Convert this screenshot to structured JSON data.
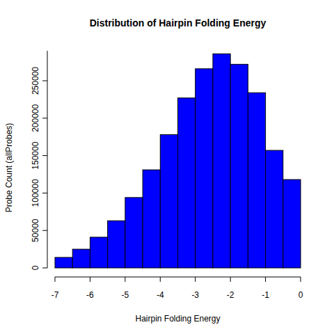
{
  "chart_data": {
    "type": "histogram",
    "title": "Distribution of Hairpin Folding Energy",
    "x_label": "Hairpin Folding Energy",
    "y_label": "Probe Count (allProbes)",
    "bins": [
      -7,
      -6.5,
      -6,
      -5.5,
      -5,
      -4.5,
      -4,
      -3.5,
      -3,
      -2.5,
      -2,
      -1.5,
      -1,
      -0.5,
      0
    ],
    "values": [
      14000,
      25000,
      41000,
      63000,
      94000,
      131000,
      178000,
      227000,
      266000,
      286000,
      272000,
      234000,
      157000,
      118000
    ],
    "color": "#0000ff",
    "xlim": [
      -7,
      0
    ],
    "xticks": [
      -7,
      -6,
      -5,
      -4,
      -3,
      -2,
      -1,
      0
    ],
    "ylim": [
      0,
      290000
    ],
    "yticks": [
      0,
      50000,
      100000,
      150000,
      200000,
      250000
    ]
  }
}
